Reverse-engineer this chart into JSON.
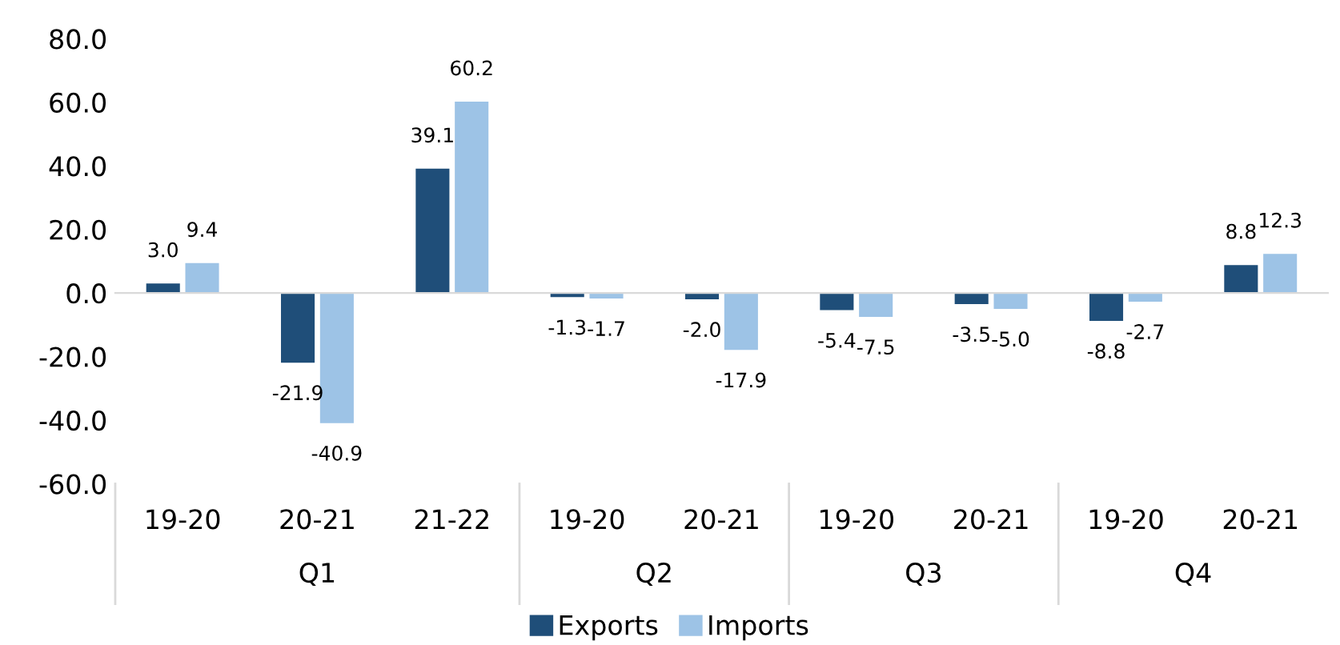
{
  "chart_data": {
    "type": "bar",
    "categories": [
      "19-20",
      "20-21",
      "21-22",
      "19-20",
      "20-21",
      "19-20",
      "20-21",
      "19-20",
      "20-21"
    ],
    "series": [
      {
        "name": "Exports",
        "color": "#1f4e79",
        "values": [
          3.0,
          -21.9,
          39.1,
          -1.3,
          -2.0,
          -5.4,
          -3.5,
          -8.8,
          8.8
        ],
        "value_labels": [
          "3.0",
          "-21.9",
          "39.1",
          "-1.3",
          "-2.0",
          "-5.4",
          "-3.5",
          "-8.8",
          "8.8"
        ]
      },
      {
        "name": "Imports",
        "color": "#9dc3e6",
        "values": [
          9.4,
          -40.9,
          60.2,
          -1.7,
          -17.9,
          -7.5,
          -5.0,
          -2.7,
          12.3
        ],
        "value_labels": [
          "9.4",
          "-40.9",
          "60.2",
          "-1.7",
          "-17.9",
          "-7.5",
          "-5.0",
          "-2.7",
          "12.3"
        ]
      }
    ],
    "annotations": [
      "Q1",
      "Q2",
      "Q3",
      "Q4"
    ],
    "ylim": [
      -60,
      80
    ],
    "yticks": [
      {
        "value": -60,
        "label": "-60.0"
      },
      {
        "value": -40,
        "label": "-40.0"
      },
      {
        "value": -20,
        "label": "-20.0"
      },
      {
        "value": 0,
        "label": "0.0"
      },
      {
        "value": 20,
        "label": "20.0"
      },
      {
        "value": 40,
        "label": "40.0"
      },
      {
        "value": 60,
        "label": "60.0"
      },
      {
        "value": 80,
        "label": "80.0"
      }
    ],
    "legend": "bottom"
  }
}
